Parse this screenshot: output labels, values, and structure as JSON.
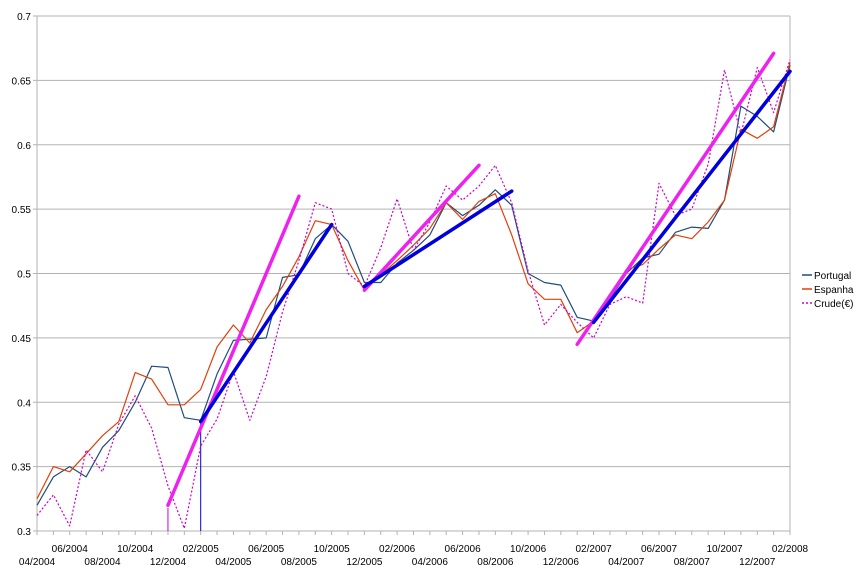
{
  "chart_data": {
    "type": "line",
    "title": "",
    "xlabel": "",
    "ylabel": "",
    "ylim": [
      0.3,
      0.7
    ],
    "y_ticks": [
      "0.3",
      "0.35",
      "0.4",
      "0.45",
      "0.5",
      "0.55",
      "0.6",
      "0.65",
      "0.7"
    ],
    "x_ticks_upper": [
      "06/2004",
      "10/2004",
      "02/2005",
      "06/2005",
      "10/2005",
      "02/2006",
      "06/2006",
      "10/2006",
      "02/2007",
      "06/2007",
      "10/2007",
      "02/2008"
    ],
    "x_ticks_lower": [
      "04/2004",
      "08/2004",
      "12/2004",
      "04/2005",
      "08/2005",
      "12/2005",
      "04/2006",
      "08/2006",
      "12/2006",
      "04/2007",
      "08/2007",
      "12/2007"
    ],
    "grid": "horizontal",
    "legend_position": "right",
    "x": [
      "04/2004",
      "05/2004",
      "06/2004",
      "07/2004",
      "08/2004",
      "09/2004",
      "10/2004",
      "11/2004",
      "12/2004",
      "01/2005",
      "02/2005",
      "03/2005",
      "04/2005",
      "05/2005",
      "06/2005",
      "07/2005",
      "08/2005",
      "09/2005",
      "10/2005",
      "11/2005",
      "12/2005",
      "01/2006",
      "02/2006",
      "03/2006",
      "04/2006",
      "05/2006",
      "06/2006",
      "07/2006",
      "08/2006",
      "09/2006",
      "10/2006",
      "11/2006",
      "12/2006",
      "01/2007",
      "02/2007",
      "03/2007",
      "04/2007",
      "05/2007",
      "06/2007",
      "07/2007",
      "08/2007",
      "09/2007",
      "10/2007",
      "11/2007",
      "12/2007",
      "01/2008",
      "02/2008"
    ],
    "series": [
      {
        "name": "Portugal",
        "color": "#1f4e79",
        "style": "solid",
        "values": [
          0.32,
          0.342,
          0.35,
          0.342,
          0.365,
          0.378,
          0.4,
          0.428,
          0.427,
          0.388,
          0.386,
          0.422,
          0.448,
          0.449,
          0.45,
          0.497,
          0.499,
          0.527,
          0.538,
          0.525,
          0.493,
          0.493,
          0.508,
          0.518,
          0.53,
          0.555,
          0.545,
          0.553,
          0.565,
          0.553,
          0.5,
          0.493,
          0.491,
          0.466,
          0.463,
          0.48,
          0.5,
          0.512,
          0.515,
          0.532,
          0.536,
          0.535,
          0.557,
          0.63,
          0.622,
          0.61,
          0.662
        ]
      },
      {
        "name": "Espanha",
        "color": "#e0400b",
        "style": "solid",
        "values": [
          0.325,
          0.35,
          0.346,
          0.36,
          0.374,
          0.385,
          0.423,
          0.418,
          0.398,
          0.398,
          0.41,
          0.443,
          0.46,
          0.446,
          0.472,
          0.49,
          0.513,
          0.541,
          0.538,
          0.51,
          0.487,
          0.499,
          0.51,
          0.522,
          0.535,
          0.555,
          0.542,
          0.556,
          0.562,
          0.53,
          0.492,
          0.48,
          0.48,
          0.454,
          0.463,
          0.482,
          0.503,
          0.507,
          0.519,
          0.53,
          0.527,
          0.54,
          0.557,
          0.612,
          0.605,
          0.614,
          0.664
        ]
      },
      {
        "name": "Crude(€)",
        "color": "#cc00cc",
        "style": "dotted",
        "values": [
          0.312,
          0.328,
          0.304,
          0.363,
          0.346,
          0.383,
          0.405,
          0.38,
          0.335,
          0.302,
          0.366,
          0.387,
          0.424,
          0.386,
          0.42,
          0.47,
          0.51,
          0.555,
          0.55,
          0.5,
          0.49,
          0.52,
          0.558,
          0.518,
          0.54,
          0.568,
          0.557,
          0.568,
          0.584,
          0.555,
          0.502,
          0.46,
          0.476,
          0.462,
          0.45,
          0.476,
          0.482,
          0.477,
          0.57,
          0.545,
          0.55,
          0.585,
          0.658,
          0.608,
          0.66,
          0.625,
          0.666
        ]
      }
    ],
    "trend_lines": [
      {
        "color": "#ee22ee",
        "from": [
          "12/2004",
          0.32
        ],
        "to": [
          "08/2005",
          0.56
        ]
      },
      {
        "color": "#0000dd",
        "from": [
          "02/2005",
          0.385
        ],
        "to": [
          "10/2005",
          0.538
        ]
      },
      {
        "color": "#ee22ee",
        "from": [
          "12/2005",
          0.487
        ],
        "to": [
          "07/2006",
          0.584
        ]
      },
      {
        "color": "#0000dd",
        "from": [
          "12/2005",
          0.49
        ],
        "to": [
          "09/2006",
          0.564
        ]
      },
      {
        "color": "#ee22ee",
        "from": [
          "01/2007",
          0.445
        ],
        "to": [
          "01/2008",
          0.671
        ]
      },
      {
        "color": "#0000dd",
        "from": [
          "02/2007",
          0.462
        ],
        "to": [
          "02/2008",
          0.657
        ]
      }
    ],
    "drop_lines": [
      {
        "color": "#cc00cc",
        "x": "12/2004",
        "from": 0.3,
        "to": 0.318
      },
      {
        "color": "#0000dd",
        "x": "02/2005",
        "from": 0.3,
        "to": 0.385
      }
    ]
  }
}
